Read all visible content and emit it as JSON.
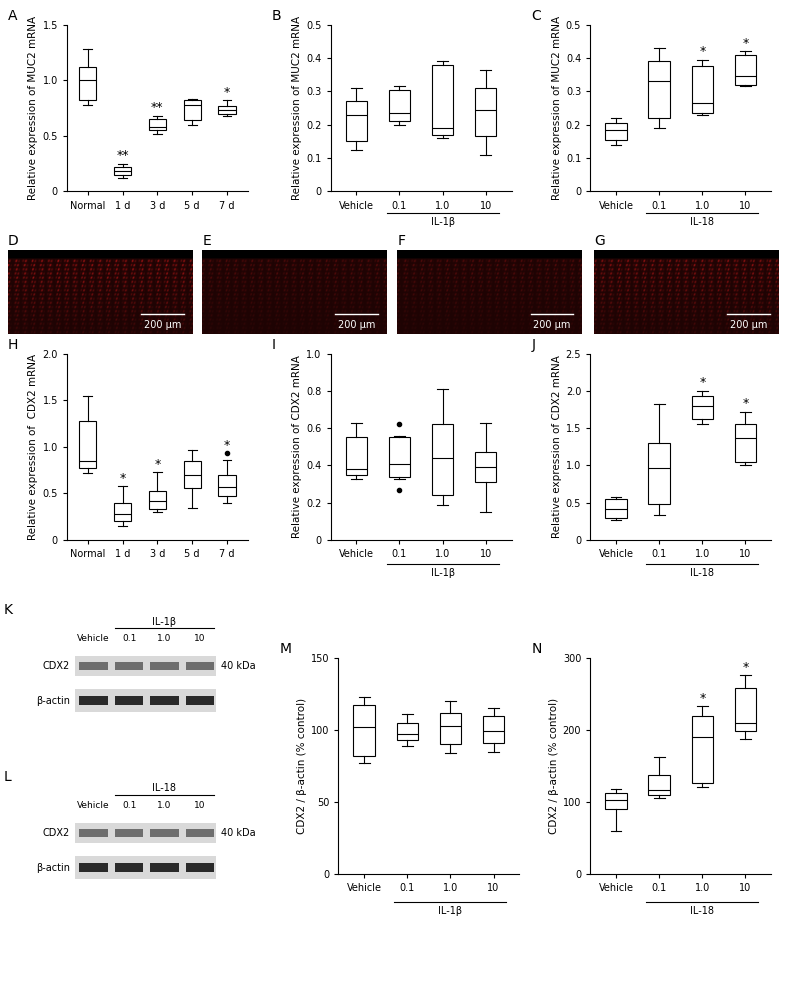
{
  "chart_data": [
    {
      "type": "box",
      "panel": "A",
      "y_label": "Relative expression of MUC2 mRNA",
      "categories": [
        "Normal",
        "1 d",
        "3 d",
        "5 d",
        "7 d"
      ],
      "boxes": [
        {
          "min": 0.78,
          "q1": 0.82,
          "median": 1.0,
          "q3": 1.12,
          "max": 1.28,
          "outliers": []
        },
        {
          "min": 0.12,
          "q1": 0.15,
          "median": 0.18,
          "q3": 0.22,
          "max": 0.25,
          "outliers": []
        },
        {
          "min": 0.52,
          "q1": 0.55,
          "median": 0.58,
          "q3": 0.65,
          "max": 0.68,
          "outliers": []
        },
        {
          "min": 0.6,
          "q1": 0.64,
          "median": 0.78,
          "q3": 0.82,
          "max": 0.83,
          "outliers": []
        },
        {
          "min": 0.68,
          "q1": 0.7,
          "median": 0.73,
          "q3": 0.77,
          "max": 0.82,
          "outliers": []
        }
      ],
      "annotations": [
        {
          "category": "1 d",
          "text": "**"
        },
        {
          "category": "3 d",
          "text": "**"
        },
        {
          "category": "7 d",
          "text": "*"
        }
      ],
      "ylim": [
        0,
        1.5
      ],
      "yticks": [
        0,
        0.5,
        {
          "value": 1,
          "label": "1.0"
        },
        1.5
      ]
    },
    {
      "type": "box",
      "panel": "B",
      "y_label": "Relative expression of MUC2 mRNA",
      "categories": [
        "Vehicle",
        "0.1",
        "1.0",
        "10"
      ],
      "group_label": "IL-1β",
      "boxes": [
        {
          "min": 0.125,
          "q1": 0.15,
          "median": 0.23,
          "q3": 0.27,
          "max": 0.31,
          "outliers": []
        },
        {
          "min": 0.2,
          "q1": 0.21,
          "median": 0.235,
          "q3": 0.305,
          "max": 0.315,
          "outliers": []
        },
        {
          "min": 0.16,
          "q1": 0.17,
          "median": 0.19,
          "q3": 0.38,
          "max": 0.39,
          "outliers": []
        },
        {
          "min": 0.11,
          "q1": 0.165,
          "median": 0.245,
          "q3": 0.31,
          "max": 0.365,
          "outliers": []
        }
      ],
      "annotations": [],
      "ylim": [
        0,
        0.5
      ],
      "yticks": [
        0,
        0.1,
        0.2,
        0.3,
        0.4,
        0.5
      ]
    },
    {
      "type": "box",
      "panel": "C",
      "y_label": "Relative expression of MUC2 mRNA",
      "categories": [
        "Vehicle",
        "0.1",
        "1.0",
        "10"
      ],
      "group_label": "IL-18",
      "boxes": [
        {
          "min": 0.14,
          "q1": 0.155,
          "median": 0.185,
          "q3": 0.205,
          "max": 0.22,
          "outliers": []
        },
        {
          "min": 0.19,
          "q1": 0.22,
          "median": 0.33,
          "q3": 0.39,
          "max": 0.43,
          "outliers": []
        },
        {
          "min": 0.23,
          "q1": 0.235,
          "median": 0.265,
          "q3": 0.375,
          "max": 0.395,
          "outliers": []
        },
        {
          "min": 0.315,
          "q1": 0.32,
          "median": 0.345,
          "q3": 0.41,
          "max": 0.42,
          "outliers": []
        }
      ],
      "annotations": [
        {
          "category": "1.0",
          "text": "*"
        },
        {
          "category": "10",
          "text": "*"
        }
      ],
      "ylim": [
        0,
        0.5
      ],
      "yticks": [
        0,
        0.1,
        0.2,
        0.3,
        0.4,
        0.5
      ]
    },
    {
      "type": "image",
      "panel": "D",
      "scale_bar": "200 μm"
    },
    {
      "type": "image",
      "panel": "E",
      "scale_bar": "200 μm"
    },
    {
      "type": "image",
      "panel": "F",
      "scale_bar": "200 μm"
    },
    {
      "type": "image",
      "panel": "G",
      "scale_bar": "200 μm"
    },
    {
      "type": "box",
      "panel": "H",
      "y_label": "Relative expression of  CDX2 mRNA",
      "categories": [
        "Normal",
        "1 d",
        "3 d",
        "5 d",
        "7 d"
      ],
      "boxes": [
        {
          "min": 0.72,
          "q1": 0.77,
          "median": 0.85,
          "q3": 1.28,
          "max": 1.55,
          "outliers": []
        },
        {
          "min": 0.15,
          "q1": 0.2,
          "median": 0.28,
          "q3": 0.4,
          "max": 0.58,
          "outliers": []
        },
        {
          "min": 0.3,
          "q1": 0.33,
          "median": 0.42,
          "q3": 0.53,
          "max": 0.73,
          "outliers": []
        },
        {
          "min": 0.34,
          "q1": 0.56,
          "median": 0.7,
          "q3": 0.85,
          "max": 0.97,
          "outliers": []
        },
        {
          "min": 0.4,
          "q1": 0.47,
          "median": 0.57,
          "q3": 0.7,
          "max": 0.86,
          "outliers": [
            0.93
          ]
        }
      ],
      "annotations": [
        {
          "category": "1 d",
          "text": "*"
        },
        {
          "category": "3 d",
          "text": "*"
        },
        {
          "category": "7 d",
          "text": "*"
        }
      ],
      "ylim": [
        0,
        2.0
      ],
      "yticks": [
        0,
        0.5,
        {
          "value": 1,
          "label": "1.0"
        },
        1.5,
        {
          "value": 2,
          "label": "2.0"
        }
      ]
    },
    {
      "type": "box",
      "panel": "I",
      "y_label": "Relative expression of CDX2 mRNA",
      "categories": [
        "Vehicle",
        "0.1",
        "1.0",
        "10"
      ],
      "group_label": "IL-1β",
      "boxes": [
        {
          "min": 0.33,
          "q1": 0.35,
          "median": 0.38,
          "q3": 0.55,
          "max": 0.63,
          "outliers": []
        },
        {
          "min": 0.33,
          "q1": 0.34,
          "median": 0.41,
          "q3": 0.55,
          "max": 0.56,
          "outliers": [
            0.62,
            0.27
          ]
        },
        {
          "min": 0.19,
          "q1": 0.24,
          "median": 0.44,
          "q3": 0.62,
          "max": 0.81,
          "outliers": []
        },
        {
          "min": 0.15,
          "q1": 0.31,
          "median": 0.39,
          "q3": 0.47,
          "max": 0.63,
          "outliers": []
        }
      ],
      "annotations": [],
      "ylim": [
        0,
        1.0
      ],
      "yticks": [
        0,
        0.2,
        0.4,
        0.6,
        0.8,
        {
          "value": 1,
          "label": "1.0"
        }
      ]
    },
    {
      "type": "box",
      "panel": "J",
      "y_label": "Relative expression of CDX2 mRNA",
      "categories": [
        "Vehicle",
        "0.1",
        "1.0",
        "10"
      ],
      "group_label": "IL-18",
      "boxes": [
        {
          "min": 0.27,
          "q1": 0.3,
          "median": 0.42,
          "q3": 0.55,
          "max": 0.58,
          "outliers": []
        },
        {
          "min": 0.33,
          "q1": 0.48,
          "median": 0.97,
          "q3": 1.3,
          "max": 1.83,
          "outliers": []
        },
        {
          "min": 1.55,
          "q1": 1.62,
          "median": 1.8,
          "q3": 1.93,
          "max": 2.0,
          "outliers": []
        },
        {
          "min": 1.0,
          "q1": 1.05,
          "median": 1.37,
          "q3": 1.55,
          "max": 1.72,
          "outliers": []
        }
      ],
      "annotations": [
        {
          "category": "1.0",
          "text": "*"
        },
        {
          "category": "10",
          "text": "*"
        }
      ],
      "ylim": [
        0,
        2.5
      ],
      "yticks": [
        0,
        0.5,
        {
          "value": 1,
          "label": "1.0"
        },
        1.5,
        {
          "value": 2,
          "label": "2.0"
        },
        2.5
      ]
    },
    {
      "type": "blot",
      "panel": "K",
      "lanes": [
        "Vehicle",
        "0.1",
        "1.0",
        "10"
      ],
      "group_label": "IL-1β",
      "bands": [
        "CDX2",
        "β-actin"
      ],
      "size_label": "40 kDa"
    },
    {
      "type": "blot",
      "panel": "L",
      "lanes": [
        "Vehicle",
        "0.1",
        "1.0",
        "10"
      ],
      "group_label": "IL-18",
      "bands": [
        "CDX2",
        "β-actin"
      ],
      "size_label": "40 kDa"
    },
    {
      "type": "box",
      "panel": "M",
      "y_label": "CDX2 / β-actin (% control)",
      "categories": [
        "Vehicle",
        "0.1",
        "1.0",
        "10"
      ],
      "group_label": "IL-1β",
      "boxes": [
        {
          "min": 77,
          "q1": 82,
          "median": 102,
          "q3": 117,
          "max": 123,
          "outliers": []
        },
        {
          "min": 89,
          "q1": 93,
          "median": 97,
          "q3": 105,
          "max": 111,
          "outliers": []
        },
        {
          "min": 84,
          "q1": 90,
          "median": 103,
          "q3": 112,
          "max": 120,
          "outliers": []
        },
        {
          "min": 85,
          "q1": 91,
          "median": 99,
          "q3": 110,
          "max": 115,
          "outliers": []
        }
      ],
      "annotations": [],
      "ylim": [
        0,
        150
      ],
      "yticks": [
        0,
        50,
        100,
        150
      ]
    },
    {
      "type": "box",
      "panel": "N",
      "y_label": "CDX2 / β-actin (% control)",
      "categories": [
        "Vehicle",
        "0.1",
        "1.0",
        "10"
      ],
      "group_label": "IL-18",
      "boxes": [
        {
          "min": 60,
          "q1": 90,
          "median": 103,
          "q3": 112,
          "max": 118,
          "outliers": []
        },
        {
          "min": 106,
          "q1": 110,
          "median": 117,
          "q3": 137,
          "max": 162,
          "outliers": []
        },
        {
          "min": 121,
          "q1": 127,
          "median": 190,
          "q3": 220,
          "max": 233,
          "outliers": []
        },
        {
          "min": 187,
          "q1": 198,
          "median": 210,
          "q3": 258,
          "max": 276,
          "outliers": []
        }
      ],
      "annotations": [
        {
          "category": "1.0",
          "text": "*"
        },
        {
          "category": "10",
          "text": "*"
        }
      ],
      "ylim": [
        0,
        300
      ],
      "yticks": [
        0,
        100,
        200,
        300
      ]
    }
  ]
}
